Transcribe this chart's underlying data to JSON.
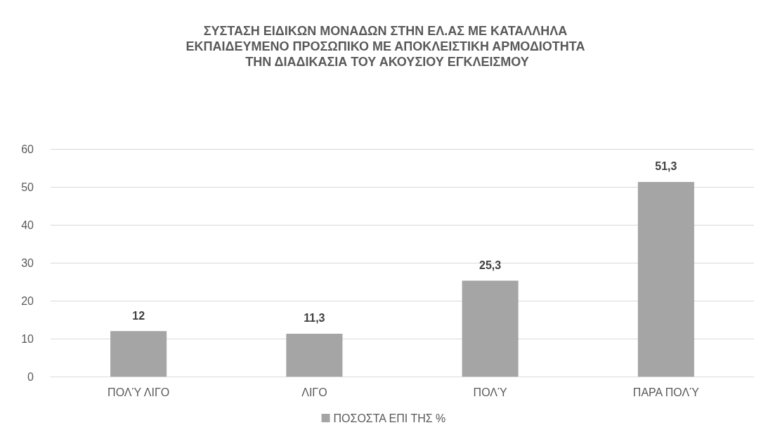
{
  "chart_data": {
    "type": "bar",
    "title": "ΣΥΣΤΑΣΗ ΕΙΔΙΚΩΝ ΜΟΝΑΔΩΝ ΣΤΗΝ ΕΛ.ΑΣ ΜΕ ΚΑΤΑΛΛΗΛΑ ΕΚΠΑΙΔΕΥΜΕΝΟ ΠΡΟΣΩΠΙΚΟ ΜΕ ΑΠΟΚΛΕΙΣΤΙΚΗ ΑΡΜΟΔΙΟΤΗΤΑ ΤΗΝ ΔΙΑΔΙΚΑΣΙΑ ΤΟΥ ΑΚΟΥΣΙΟΥ ΕΓΚΛΕΙΣΜΟΥ",
    "categories": [
      "ΠΟΛΎ ΛΙΓΟ",
      "ΛΙΓΟ",
      "ΠΟΛΎ",
      "ΠΑΡΑ ΠΟΛΎ"
    ],
    "series": [
      {
        "name": "ΠΟΣΟΣΤΑ ΕΠΙ ΤΗΣ %",
        "color": "#a5a5a5",
        "values": [
          12,
          11.3,
          25.3,
          51.3
        ],
        "value_labels": [
          "12",
          "11,3",
          "25,3",
          "51,3"
        ]
      }
    ],
    "ylim": [
      0,
      60
    ],
    "yticks": [
      0,
      10,
      20,
      30,
      40,
      50,
      60
    ],
    "grid": "y",
    "legend": "bottom"
  }
}
